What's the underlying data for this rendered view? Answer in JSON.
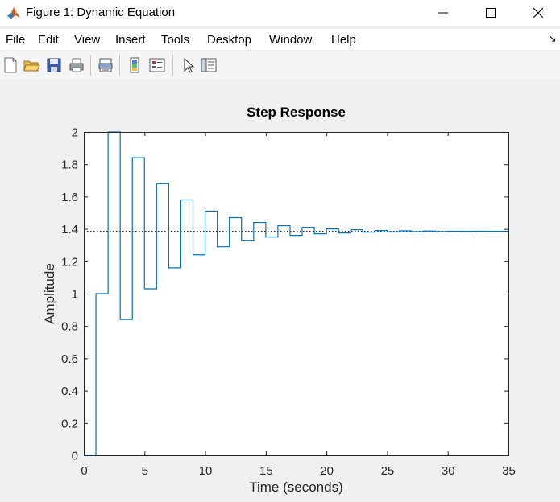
{
  "window": {
    "title": "Figure 1: Dynamic Equation",
    "app_icon": "matlab-icon",
    "controls": [
      "minimize-icon",
      "maximize-icon",
      "close-icon"
    ]
  },
  "menu": {
    "items": [
      "File",
      "Edit",
      "View",
      "Insert",
      "Tools",
      "Desktop",
      "Window",
      "Help"
    ],
    "dock_icon": "dock-arrow-icon"
  },
  "toolbar": {
    "icons": [
      "new-figure-icon",
      "open-file-icon",
      "save-icon",
      "print-icon",
      "print-preview-icon",
      "colorbar-icon",
      "legend-icon",
      "pointer-icon",
      "property-inspector-icon"
    ]
  },
  "colors": {
    "line": "#0072bd",
    "axes": "#262626",
    "reference": "#000000"
  },
  "chart_data": {
    "type": "line",
    "title": "Step Response",
    "xlabel": "Time (seconds)",
    "ylabel": "Amplitude",
    "xlim": [
      0,
      35
    ],
    "ylim": [
      0,
      2
    ],
    "xticks": [
      "0",
      "5",
      "10",
      "15",
      "20",
      "25",
      "30",
      "35"
    ],
    "yticks": [
      "0",
      "0.2",
      "0.4",
      "0.6",
      "0.8",
      "1",
      "1.2",
      "1.4",
      "1.6",
      "1.8",
      "2"
    ],
    "grid": false,
    "style": "stairs",
    "sample_time": 1,
    "steady_state": 1.385,
    "series": [
      {
        "x": [
          0,
          1,
          2,
          3,
          4,
          5,
          6,
          7,
          8,
          9,
          10,
          11,
          12,
          13,
          14,
          15,
          16,
          17,
          18,
          19,
          20,
          21,
          22,
          23,
          24,
          25,
          26,
          27,
          28,
          29,
          30,
          31,
          32,
          33,
          34,
          35
        ],
        "values": [
          0,
          1,
          2,
          0.84,
          1.84,
          1.03,
          1.68,
          1.16,
          1.58,
          1.24,
          1.51,
          1.29,
          1.47,
          1.33,
          1.44,
          1.35,
          1.42,
          1.36,
          1.41,
          1.37,
          1.4,
          1.375,
          1.395,
          1.38,
          1.39,
          1.382,
          1.388,
          1.383,
          1.387,
          1.384,
          1.386,
          1.385,
          1.386,
          1.385,
          1.385,
          1.385
        ]
      }
    ]
  }
}
